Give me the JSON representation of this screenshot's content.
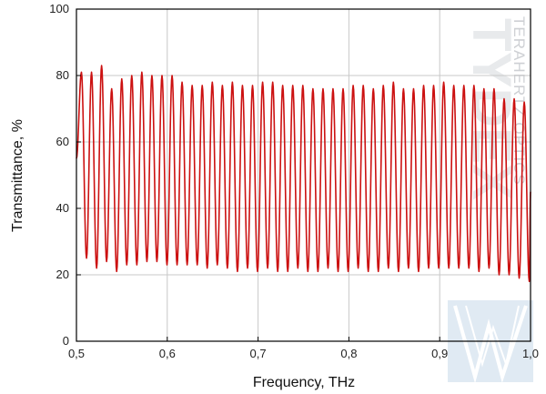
{
  "chart_data": {
    "type": "line",
    "title": "",
    "xlabel": "Frequency, THz",
    "ylabel": "Transmittance, %",
    "xlim": [
      0.5,
      1.0
    ],
    "ylim": [
      0,
      100
    ],
    "x_ticks": [
      "0,5",
      "0,6",
      "0,7",
      "0,8",
      "0,9",
      "1,0"
    ],
    "y_ticks": [
      "0",
      "20",
      "40",
      "60",
      "80",
      "100"
    ],
    "grid": true,
    "legend": "none",
    "series": [
      {
        "color": "#cc1111",
        "x": [
          0.5,
          0.5055,
          0.5111,
          0.5166,
          0.5222,
          0.5277,
          0.5332,
          0.5388,
          0.5443,
          0.5499,
          0.5554,
          0.5609,
          0.5665,
          0.572,
          0.5776,
          0.5831,
          0.5886,
          0.5942,
          0.5997,
          0.6053,
          0.6108,
          0.6163,
          0.6219,
          0.6274,
          0.633,
          0.6385,
          0.644,
          0.6496,
          0.6551,
          0.6607,
          0.6662,
          0.6717,
          0.6773,
          0.6828,
          0.6884,
          0.6939,
          0.6994,
          0.705,
          0.7105,
          0.7161,
          0.7216,
          0.7271,
          0.7327,
          0.7382,
          0.7438,
          0.7493,
          0.7548,
          0.7604,
          0.7659,
          0.7715,
          0.777,
          0.7825,
          0.7881,
          0.7936,
          0.7992,
          0.8047,
          0.8102,
          0.8158,
          0.8213,
          0.8269,
          0.8324,
          0.8379,
          0.8435,
          0.849,
          0.8546,
          0.8601,
          0.8656,
          0.8712,
          0.8767,
          0.8823,
          0.8878,
          0.8933,
          0.8989,
          0.9044,
          0.91,
          0.9155,
          0.921,
          0.9266,
          0.9321,
          0.9377,
          0.9432,
          0.9487,
          0.9543,
          0.9598,
          0.9654,
          0.9709,
          0.9764,
          0.982,
          0.9875,
          0.9931,
          0.9986,
          1.0
        ],
        "y": [
          55,
          81,
          25,
          81,
          22,
          83,
          24,
          76,
          21,
          79,
          23,
          80,
          23,
          81,
          24,
          80,
          24,
          80,
          23,
          80,
          23,
          78,
          23,
          77,
          23,
          77,
          22,
          78,
          23,
          77,
          22,
          78,
          21,
          77,
          22,
          77,
          21,
          78,
          22,
          78,
          21,
          77,
          21,
          77,
          22,
          77,
          21,
          76,
          21,
          76,
          22,
          76,
          21,
          76,
          21,
          77,
          22,
          77,
          21,
          76,
          21,
          77,
          22,
          78,
          21,
          76,
          22,
          76,
          21,
          77,
          22,
          77,
          22,
          78,
          22,
          77,
          22,
          77,
          22,
          77,
          21,
          76,
          22,
          76,
          20,
          73,
          20,
          73,
          19,
          72,
          18,
          45
        ]
      }
    ]
  },
  "watermark": {
    "brand": "TYDEX",
    "tagline": "TERAHERTZ OPTICS"
  }
}
